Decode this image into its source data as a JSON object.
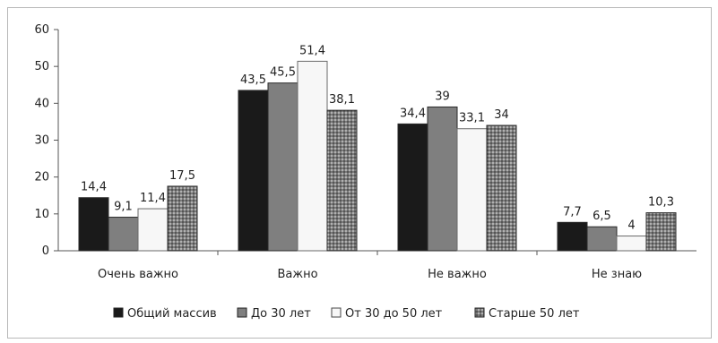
{
  "chart_data": {
    "type": "bar",
    "title": "",
    "xlabel": "",
    "ylabel": "",
    "ylim": [
      0,
      60
    ],
    "yticks": [
      0,
      10,
      20,
      30,
      40,
      50,
      60
    ],
    "grid": false,
    "legend_position": "bottom",
    "categories": [
      "Очень важно",
      "Важно",
      "Не важно",
      "Не знаю"
    ],
    "series": [
      {
        "name": "Общий массив",
        "values": [
          14.4,
          43.5,
          34.4,
          7.7
        ],
        "labels": [
          "14,4",
          "43,5",
          "34,4",
          "7,7"
        ],
        "color": "#1a1a1a",
        "pattern": "solid"
      },
      {
        "name": "До 30 лет",
        "values": [
          9.1,
          45.5,
          39,
          6.5
        ],
        "labels": [
          "9,1",
          "45,5",
          "39",
          "6,5"
        ],
        "color": "#7f7f7f",
        "pattern": "solid"
      },
      {
        "name": "От 30 до 50 лет",
        "values": [
          11.4,
          51.4,
          33.1,
          4
        ],
        "labels": [
          "11,4",
          "51,4",
          "33,1",
          "4"
        ],
        "color": "#f7f7f7",
        "pattern": "solid"
      },
      {
        "name": "Старше 50 лет",
        "values": [
          17.5,
          38.1,
          34,
          10.3
        ],
        "labels": [
          "17,5",
          "38,1",
          "34",
          "10,3"
        ],
        "color": "#8a8a8a",
        "pattern": "dotted"
      }
    ]
  }
}
